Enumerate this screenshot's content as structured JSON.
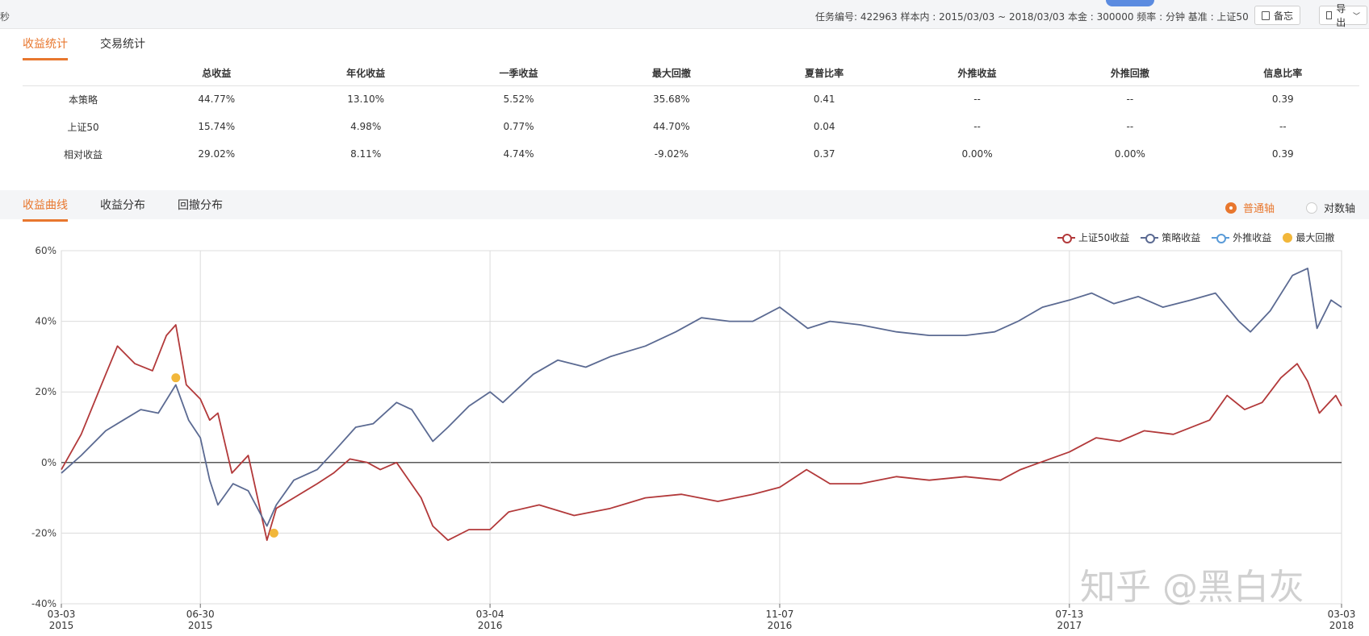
{
  "topbar": {
    "cut_text": "秒",
    "info": "任务编号: 422963  样本内 : 2015/03/03 ~ 2018/03/03  本金 : 300000  频率 : 分钟  基准 : 上证50",
    "memo_label": "备忘",
    "export_label": "导出"
  },
  "stats_tabs": [
    "收益统计",
    "交易统计"
  ],
  "stats_table": {
    "headers": [
      "",
      "总收益",
      "年化收益",
      "一季收益",
      "最大回撤",
      "夏普比率",
      "外推收益",
      "外推回撤",
      "信息比率"
    ],
    "rows": [
      [
        "本策略",
        "44.77%",
        "13.10%",
        "5.52%",
        "35.68%",
        "0.41",
        "--",
        "--",
        "0.39"
      ],
      [
        "上证50",
        "15.74%",
        "4.98%",
        "0.77%",
        "44.70%",
        "0.04",
        "--",
        "--",
        "--"
      ],
      [
        "相对收益",
        "29.02%",
        "8.11%",
        "4.74%",
        "-9.02%",
        "0.37",
        "0.00%",
        "0.00%",
        "0.39"
      ]
    ]
  },
  "chart_tabs": [
    "收益曲线",
    "收益分布",
    "回撤分布"
  ],
  "axis_toggle": {
    "normal": "普通轴",
    "log": "对数轴",
    "selected": "normal"
  },
  "legend": [
    {
      "label": "上证50收益",
      "color": "#b2393a"
    },
    {
      "label": "策略收益",
      "color": "#5b6a92"
    },
    {
      "label": "外推收益",
      "color": "#5a9bd8"
    },
    {
      "label": "最大回撤",
      "color": "#f2b73a"
    }
  ],
  "watermark": "知乎 @黑白灰",
  "chart_data": {
    "type": "line",
    "ylim": [
      -40,
      60
    ],
    "yticks": [
      "60%",
      "40%",
      "20%",
      "0%",
      "-20%",
      "-40%"
    ],
    "xtick_labels": [
      {
        "date": "03-03",
        "year": "2015"
      },
      {
        "date": "06-30",
        "year": "2015"
      },
      {
        "date": "03-04",
        "year": "2016"
      },
      {
        "date": "11-07",
        "year": "2016"
      },
      {
        "date": "07-13",
        "year": "2017"
      },
      {
        "date": "03-03",
        "year": "2018"
      }
    ],
    "grid": true,
    "legend_position": "top-right",
    "series": [
      {
        "name": "上证50收益",
        "color": "#b2393a",
        "points": [
          [
            "2015-03-03",
            -2
          ],
          [
            "2015-03-20",
            8
          ],
          [
            "2015-04-10",
            25
          ],
          [
            "2015-04-20",
            33
          ],
          [
            "2015-05-05",
            28
          ],
          [
            "2015-05-20",
            26
          ],
          [
            "2015-06-01",
            36
          ],
          [
            "2015-06-09",
            39
          ],
          [
            "2015-06-18",
            22
          ],
          [
            "2015-06-30",
            18
          ],
          [
            "2015-07-08",
            12
          ],
          [
            "2015-07-15",
            14
          ],
          [
            "2015-07-27",
            -3
          ],
          [
            "2015-08-10",
            2
          ],
          [
            "2015-08-26",
            -22
          ],
          [
            "2015-09-03",
            -13
          ],
          [
            "2015-09-18",
            -10
          ],
          [
            "2015-10-08",
            -6
          ],
          [
            "2015-10-22",
            -3
          ],
          [
            "2015-11-05",
            1
          ],
          [
            "2015-11-20",
            0
          ],
          [
            "2015-12-01",
            -2
          ],
          [
            "2015-12-15",
            0
          ],
          [
            "2016-01-05",
            -10
          ],
          [
            "2016-01-15",
            -18
          ],
          [
            "2016-01-28",
            -22
          ],
          [
            "2016-02-15",
            -19
          ],
          [
            "2016-03-04",
            -19
          ],
          [
            "2016-03-20",
            -14
          ],
          [
            "2016-04-15",
            -12
          ],
          [
            "2016-05-15",
            -15
          ],
          [
            "2016-06-15",
            -13
          ],
          [
            "2016-07-15",
            -10
          ],
          [
            "2016-08-15",
            -9
          ],
          [
            "2016-09-15",
            -11
          ],
          [
            "2016-10-15",
            -9
          ],
          [
            "2016-11-07",
            -7
          ],
          [
            "2016-11-30",
            -2
          ],
          [
            "2016-12-20",
            -6
          ],
          [
            "2017-01-15",
            -6
          ],
          [
            "2017-02-15",
            -4
          ],
          [
            "2017-03-15",
            -5
          ],
          [
            "2017-04-15",
            -4
          ],
          [
            "2017-05-15",
            -5
          ],
          [
            "2017-06-01",
            -2
          ],
          [
            "2017-07-13",
            3
          ],
          [
            "2017-08-05",
            7
          ],
          [
            "2017-08-25",
            6
          ],
          [
            "2017-09-15",
            9
          ],
          [
            "2017-10-10",
            8
          ],
          [
            "2017-11-10",
            12
          ],
          [
            "2017-11-25",
            19
          ],
          [
            "2017-12-10",
            15
          ],
          [
            "2017-12-25",
            17
          ],
          [
            "2018-01-10",
            24
          ],
          [
            "2018-01-24",
            28
          ],
          [
            "2018-02-02",
            23
          ],
          [
            "2018-02-12",
            14
          ],
          [
            "2018-02-26",
            19
          ],
          [
            "2018-03-03",
            16
          ]
        ]
      },
      {
        "name": "策略收益",
        "color": "#5b6a92",
        "points": [
          [
            "2015-03-03",
            -3
          ],
          [
            "2015-03-20",
            2
          ],
          [
            "2015-04-10",
            9
          ],
          [
            "2015-04-25",
            12
          ],
          [
            "2015-05-10",
            15
          ],
          [
            "2015-05-25",
            14
          ],
          [
            "2015-06-09",
            22
          ],
          [
            "2015-06-20",
            12
          ],
          [
            "2015-06-30",
            7
          ],
          [
            "2015-07-08",
            -5
          ],
          [
            "2015-07-15",
            -12
          ],
          [
            "2015-07-28",
            -6
          ],
          [
            "2015-08-10",
            -8
          ],
          [
            "2015-08-26",
            -18
          ],
          [
            "2015-09-03",
            -12
          ],
          [
            "2015-09-18",
            -5
          ],
          [
            "2015-10-08",
            -2
          ],
          [
            "2015-10-22",
            3
          ],
          [
            "2015-11-10",
            10
          ],
          [
            "2015-11-25",
            11
          ],
          [
            "2015-12-15",
            17
          ],
          [
            "2015-12-28",
            15
          ],
          [
            "2016-01-15",
            6
          ],
          [
            "2016-01-28",
            10
          ],
          [
            "2016-02-15",
            16
          ],
          [
            "2016-03-04",
            20
          ],
          [
            "2016-03-15",
            17
          ],
          [
            "2016-04-10",
            25
          ],
          [
            "2016-05-01",
            29
          ],
          [
            "2016-05-25",
            27
          ],
          [
            "2016-06-15",
            30
          ],
          [
            "2016-07-15",
            33
          ],
          [
            "2016-08-10",
            37
          ],
          [
            "2016-09-01",
            41
          ],
          [
            "2016-09-25",
            40
          ],
          [
            "2016-10-15",
            40
          ],
          [
            "2016-11-07",
            44
          ],
          [
            "2016-12-01",
            38
          ],
          [
            "2016-12-20",
            40
          ],
          [
            "2017-01-15",
            39
          ],
          [
            "2017-02-15",
            37
          ],
          [
            "2017-03-15",
            36
          ],
          [
            "2017-04-15",
            36
          ],
          [
            "2017-05-10",
            37
          ],
          [
            "2017-05-30",
            40
          ],
          [
            "2017-06-20",
            44
          ],
          [
            "2017-07-13",
            46
          ],
          [
            "2017-08-01",
            48
          ],
          [
            "2017-08-20",
            45
          ],
          [
            "2017-09-10",
            47
          ],
          [
            "2017-10-01",
            44
          ],
          [
            "2017-10-25",
            46
          ],
          [
            "2017-11-15",
            48
          ],
          [
            "2017-12-05",
            40
          ],
          [
            "2017-12-15",
            37
          ],
          [
            "2018-01-01",
            43
          ],
          [
            "2018-01-20",
            53
          ],
          [
            "2018-02-02",
            55
          ],
          [
            "2018-02-10",
            38
          ],
          [
            "2018-02-22",
            46
          ],
          [
            "2018-03-03",
            44
          ]
        ]
      }
    ],
    "max_drawdown_points": [
      {
        "date": "2015-06-09",
        "value": 24
      },
      {
        "date": "2015-09-01",
        "value": -20
      }
    ]
  }
}
